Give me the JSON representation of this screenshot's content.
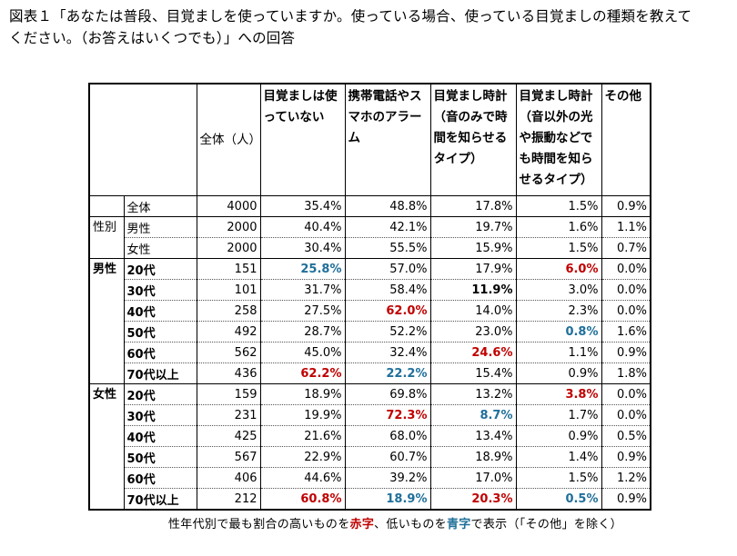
{
  "title_line1": "図表１「あなたは普段、目覚ましを使っていますか。使っている場合、使っている目覚ましの種類を教えて",
  "title_line2": "ください。（お答えはいくつでも）」への回答",
  "header": {
    "total": "全体（人）",
    "col1": "目覚ましは使っていない",
    "col2": "携帯電話やスマホのアラーム",
    "col3": "目覚まし時計（音のみで時間を知らせるタイプ）",
    "col4": "目覚まし時計（音以外の光や振動などでも時間を知らせるタイプ）",
    "col5": "その他"
  },
  "groups": [
    {
      "name": "",
      "bold": false,
      "rows": [
        {
          "label": "全体",
          "n": "4000",
          "v": [
            "35.4%",
            "48.8%",
            "17.8%",
            "1.5%",
            "0.9%"
          ],
          "hl": [
            "",
            "",
            "",
            "",
            ""
          ]
        }
      ]
    },
    {
      "name": "性別",
      "bold": false,
      "rows": [
        {
          "label": "男性",
          "n": "2000",
          "v": [
            "40.4%",
            "42.1%",
            "19.7%",
            "1.6%",
            "1.1%"
          ],
          "hl": [
            "",
            "",
            "",
            "",
            ""
          ]
        },
        {
          "label": "女性",
          "n": "2000",
          "v": [
            "30.4%",
            "55.5%",
            "15.9%",
            "1.5%",
            "0.7%"
          ],
          "hl": [
            "",
            "",
            "",
            "",
            ""
          ]
        }
      ]
    },
    {
      "name": "男性",
      "bold": true,
      "rows": [
        {
          "label": "20代",
          "n": "151",
          "v": [
            "25.8%",
            "57.0%",
            "17.9%",
            "6.0%",
            "0.0%"
          ],
          "hl": [
            "blue",
            "",
            "",
            "red",
            ""
          ]
        },
        {
          "label": "30代",
          "n": "101",
          "v": [
            "31.7%",
            "58.4%",
            "11.9%",
            "3.0%",
            "0.0%"
          ],
          "hl": [
            "",
            "",
            "black",
            "",
            ""
          ]
        },
        {
          "label": "40代",
          "n": "258",
          "v": [
            "27.5%",
            "62.0%",
            "14.0%",
            "2.3%",
            "0.0%"
          ],
          "hl": [
            "",
            "red",
            "",
            "",
            ""
          ]
        },
        {
          "label": "50代",
          "n": "492",
          "v": [
            "28.7%",
            "52.2%",
            "23.0%",
            "0.8%",
            "1.6%"
          ],
          "hl": [
            "",
            "",
            "",
            "blue",
            ""
          ]
        },
        {
          "label": "60代",
          "n": "562",
          "v": [
            "45.0%",
            "32.4%",
            "24.6%",
            "1.1%",
            "0.9%"
          ],
          "hl": [
            "",
            "",
            "red",
            "",
            ""
          ]
        },
        {
          "label": "70代以上",
          "n": "436",
          "v": [
            "62.2%",
            "22.2%",
            "15.4%",
            "0.9%",
            "1.8%"
          ],
          "hl": [
            "red",
            "blue",
            "",
            "",
            ""
          ]
        }
      ]
    },
    {
      "name": "女性",
      "bold": true,
      "rows": [
        {
          "label": "20代",
          "n": "159",
          "v": [
            "18.9%",
            "69.8%",
            "13.2%",
            "3.8%",
            "0.0%"
          ],
          "hl": [
            "",
            "",
            "",
            "red",
            ""
          ]
        },
        {
          "label": "30代",
          "n": "231",
          "v": [
            "19.9%",
            "72.3%",
            "8.7%",
            "1.7%",
            "0.0%"
          ],
          "hl": [
            "",
            "red",
            "blue",
            "",
            ""
          ]
        },
        {
          "label": "40代",
          "n": "425",
          "v": [
            "21.6%",
            "68.0%",
            "13.4%",
            "0.9%",
            "0.5%"
          ],
          "hl": [
            "",
            "",
            "",
            "",
            ""
          ]
        },
        {
          "label": "50代",
          "n": "567",
          "v": [
            "22.9%",
            "60.7%",
            "18.9%",
            "1.4%",
            "0.9%"
          ],
          "hl": [
            "",
            "",
            "",
            "",
            ""
          ]
        },
        {
          "label": "60代",
          "n": "406",
          "v": [
            "44.6%",
            "39.2%",
            "17.0%",
            "1.5%",
            "1.2%"
          ],
          "hl": [
            "",
            "",
            "",
            "",
            ""
          ]
        },
        {
          "label": "70代以上",
          "n": "212",
          "v": [
            "60.8%",
            "18.9%",
            "20.3%",
            "0.5%",
            "0.9%"
          ],
          "hl": [
            "red",
            "blue",
            "red",
            "blue",
            ""
          ]
        }
      ]
    }
  ],
  "note": {
    "part1": "性年代別で最も割合の高いものを",
    "red_word": "赤字",
    "part2": "、低いものを",
    "blue_word": "青字",
    "part3": "で表示（「その他」を除く）"
  },
  "colors": {
    "red": "#c00000",
    "blue": "#1f6f9a"
  }
}
